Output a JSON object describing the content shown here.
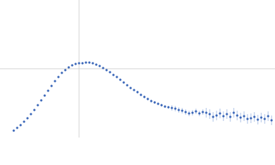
{
  "chart_data": {
    "type": "scatter",
    "xlim": [
      0,
      400
    ],
    "ylim": [
      0,
      200
    ],
    "xref": 115,
    "yref": 100,
    "series": [
      {
        "color": "#3a66b8",
        "error_color": "#a9bfe6",
        "x": [
          20,
          25,
          30,
          35,
          40,
          45,
          50,
          55,
          60,
          65,
          70,
          75,
          80,
          85,
          90,
          95,
          100,
          105,
          110,
          115,
          120,
          125,
          130,
          135,
          140,
          145,
          150,
          155,
          160,
          165,
          170,
          175,
          180,
          185,
          190,
          195,
          200,
          205,
          210,
          215,
          220,
          225,
          230,
          235,
          240,
          245,
          250,
          255,
          260,
          265,
          270,
          275,
          280,
          285,
          290,
          295,
          300,
          305,
          310,
          315,
          320,
          325,
          330,
          335,
          340,
          345,
          350,
          355,
          360,
          365,
          370,
          375,
          380,
          385,
          390,
          395
        ],
        "values": [
          10,
          14,
          18,
          23,
          28,
          34,
          40,
          47,
          54,
          61,
          68,
          75,
          82,
          88,
          94,
          98,
          102,
          105,
          107,
          108,
          108,
          109,
          109,
          108,
          106,
          104,
          101,
          98,
          95,
          91,
          88,
          84,
          80,
          76,
          72,
          69,
          66,
          62,
          59,
          56,
          53,
          51,
          49,
          47,
          45,
          44,
          43,
          42,
          40,
          39,
          37,
          35,
          36,
          38,
          35,
          37,
          36,
          34,
          30,
          32,
          35,
          31,
          34,
          30,
          36,
          32,
          29,
          31,
          27,
          28,
          30,
          26,
          29,
          27,
          31,
          25
        ],
        "errors": [
          0.5,
          0.5,
          0.5,
          0.5,
          0.5,
          0.5,
          0.5,
          0.5,
          0.5,
          0.5,
          0.5,
          0.5,
          0.5,
          0.5,
          0.5,
          0.5,
          0.5,
          0.5,
          0.5,
          0.5,
          0.5,
          0.5,
          0.5,
          0.5,
          0.5,
          0.5,
          0.5,
          0.5,
          0.5,
          0.5,
          0.5,
          0.5,
          0.5,
          0.5,
          0.5,
          0.5,
          2,
          2,
          2,
          2,
          2,
          2,
          2,
          2,
          2,
          2,
          4,
          4,
          4,
          4,
          4,
          4,
          4,
          4,
          4,
          4,
          7,
          7,
          7,
          7,
          7,
          7,
          7,
          7,
          7,
          7,
          7,
          7,
          7,
          7,
          7,
          7,
          7,
          7,
          7,
          7
        ]
      }
    ]
  }
}
